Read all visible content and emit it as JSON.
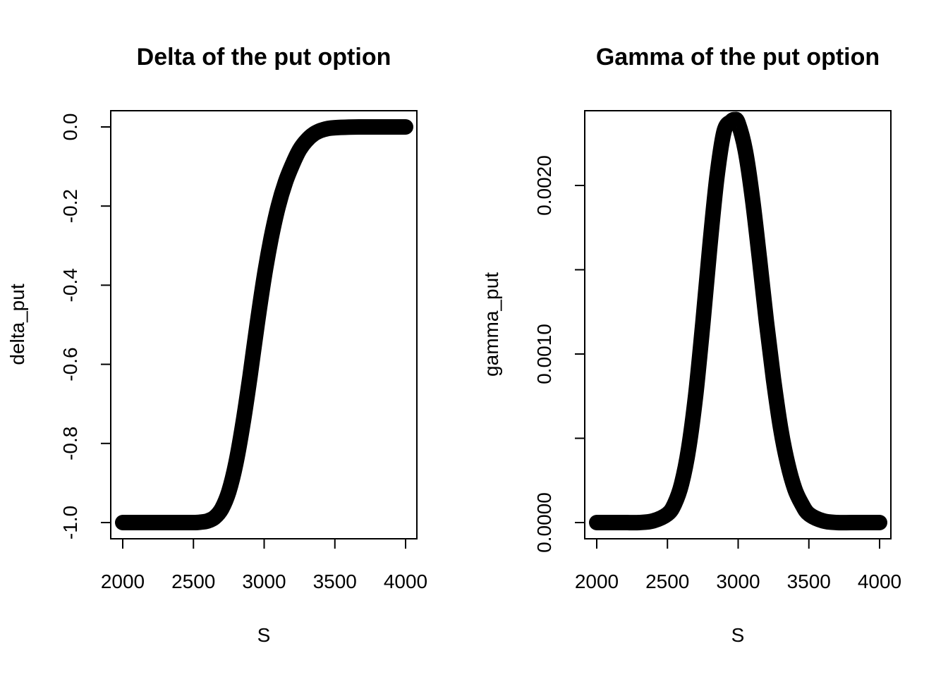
{
  "chart_data": [
    {
      "type": "line",
      "title": "Delta of the put option",
      "xlabel": "S",
      "ylabel": "delta_put",
      "xlim": [
        2000,
        4000
      ],
      "ylim": [
        -1.0,
        0.0
      ],
      "xticks": [
        2000,
        2500,
        3000,
        3500,
        4000
      ],
      "xtick_labels": [
        "2000",
        "2500",
        "3000",
        "3500",
        "4000"
      ],
      "yticks": [
        -1.0,
        -0.8,
        -0.6,
        -0.4,
        -0.2,
        0.0
      ],
      "ytick_labels": [
        "-1.0",
        "-0.8",
        "-0.6",
        "-0.4",
        "-0.2",
        "0.0"
      ],
      "grid": false,
      "series": [
        {
          "x": [
            2000,
            2100,
            2200,
            2300,
            2400,
            2500,
            2550,
            2600,
            2650,
            2700,
            2750,
            2800,
            2850,
            2900,
            2950,
            3000,
            3050,
            3100,
            3150,
            3200,
            3250,
            3300,
            3350,
            3400,
            3450,
            3500,
            3600,
            3700,
            3800,
            3900,
            4000
          ],
          "y": [
            -1.0,
            -1.0,
            -1.0,
            -1.0,
            -1.0,
            -1.0,
            -0.999,
            -0.996,
            -0.987,
            -0.965,
            -0.922,
            -0.85,
            -0.75,
            -0.63,
            -0.5,
            -0.38,
            -0.28,
            -0.2,
            -0.14,
            -0.095,
            -0.058,
            -0.034,
            -0.018,
            -0.009,
            -0.004,
            -0.002,
            -0.0005,
            0.0,
            0.0,
            0.0,
            0.0
          ]
        }
      ]
    },
    {
      "type": "line",
      "title": "Gamma of the put option",
      "xlabel": "S",
      "ylabel": "gamma_put",
      "xlim": [
        2000,
        4000
      ],
      "ylim": [
        0.0,
        0.0024
      ],
      "xticks": [
        2000,
        2500,
        3000,
        3500,
        4000
      ],
      "xtick_labels": [
        "2000",
        "2500",
        "3000",
        "3500",
        "4000"
      ],
      "yticks": [
        0.0,
        0.0005,
        0.001,
        0.0015,
        0.002
      ],
      "ytick_labels": [
        "0.0000",
        "",
        "0.0010",
        "",
        "0.0020"
      ],
      "grid": false,
      "series": [
        {
          "x": [
            2000,
            2100,
            2200,
            2300,
            2400,
            2500,
            2550,
            2600,
            2650,
            2700,
            2750,
            2800,
            2850,
            2900,
            2950,
            2975,
            3000,
            3050,
            3100,
            3150,
            3200,
            3250,
            3300,
            3350,
            3400,
            3450,
            3500,
            3600,
            3700,
            3800,
            3900,
            4000
          ],
          "y": [
            0.0,
            0.0,
            0.0,
            0.0,
            1e-05,
            5e-05,
            0.00011,
            0.00023,
            0.00044,
            0.00076,
            0.00118,
            0.00164,
            0.00205,
            0.00232,
            0.00238,
            0.00239,
            0.00237,
            0.00221,
            0.00193,
            0.00157,
            0.00119,
            0.00085,
            0.00056,
            0.00035,
            0.0002,
            0.00011,
            5e-05,
            1e-05,
            0.0,
            0.0,
            0.0,
            0.0
          ]
        }
      ]
    }
  ]
}
